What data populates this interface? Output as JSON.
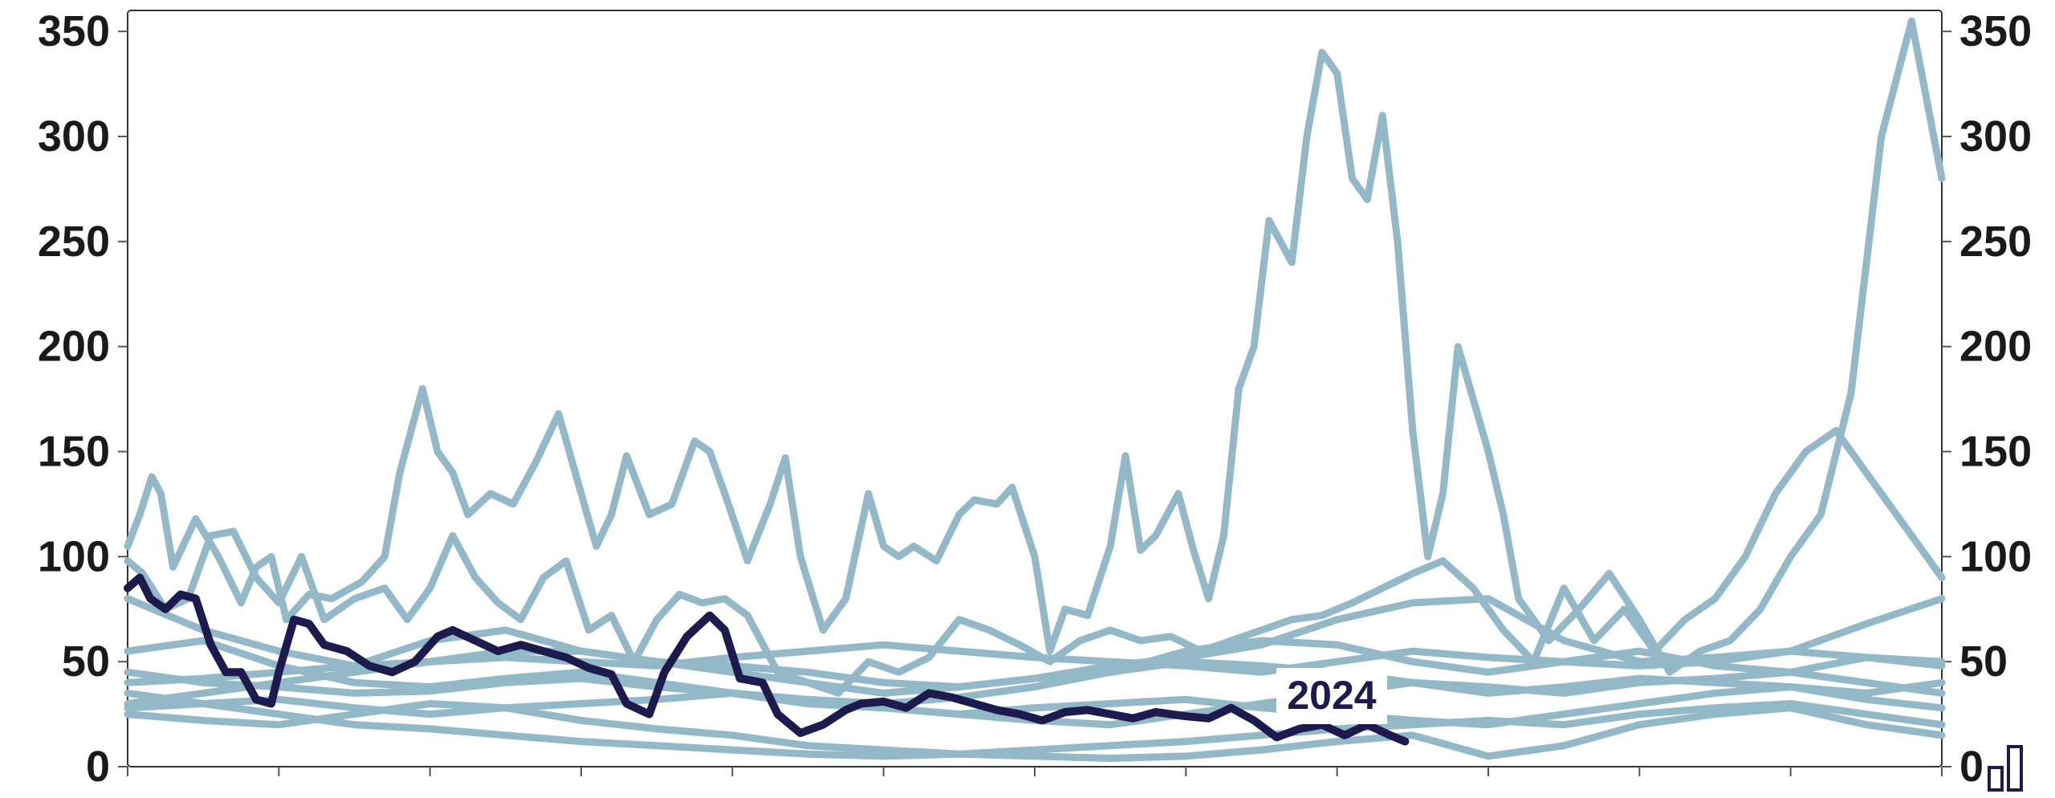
{
  "chart_data": {
    "type": "line",
    "title": "",
    "xlabel": "",
    "ylabel": "",
    "ylim": [
      0,
      360
    ],
    "yticks": [
      0,
      50,
      100,
      150,
      200,
      250,
      300,
      350
    ],
    "ytick_labels": [
      "0",
      "50",
      "100",
      "150",
      "200",
      "250",
      "300",
      "350"
    ],
    "xlim": [
      0,
      12
    ],
    "grid": false,
    "legend": "none",
    "colors": {
      "history": "#93b8c8",
      "highlight": "#1d1a4d",
      "axis": "#555555"
    },
    "highlight_label": "2024",
    "history_series": [
      {
        "x": [
          0,
          0.08,
          0.16,
          0.22,
          0.3,
          0.45,
          0.6,
          0.75,
          0.85,
          0.95,
          1.05,
          1.2,
          1.35,
          1.55,
          1.7,
          1.8,
          1.95,
          2.05,
          2.15,
          2.25,
          2.4,
          2.55,
          2.7,
          2.85,
          3.0,
          3.1,
          3.2,
          3.3,
          3.45,
          3.6,
          3.75,
          3.85,
          3.95,
          4.1,
          4.25,
          4.35,
          4.45,
          4.6,
          4.75,
          4.9,
          5.0,
          5.1,
          5.2,
          5.35,
          5.5,
          5.6,
          5.75,
          5.85,
          6.0,
          6.1,
          6.2,
          6.35,
          6.5,
          6.6,
          6.7,
          6.8,
          6.95,
          7.05,
          7.15,
          7.25,
          7.35,
          7.45,
          7.55,
          7.7,
          7.8,
          7.9,
          8.0,
          8.1,
          8.2,
          8.3,
          8.4,
          8.5,
          8.6,
          8.7,
          8.8,
          8.9,
          9.0,
          9.1,
          9.2,
          9.4,
          9.6,
          9.8,
          10.0,
          10.2,
          10.4,
          10.6,
          10.8,
          11.0,
          11.2,
          11.4,
          11.6,
          11.8,
          12.0
        ],
        "y": [
          105,
          120,
          138,
          130,
          95,
          118,
          100,
          78,
          95,
          100,
          70,
          82,
          80,
          88,
          100,
          140,
          180,
          150,
          140,
          120,
          130,
          125,
          145,
          168,
          130,
          105,
          120,
          148,
          120,
          125,
          155,
          150,
          130,
          98,
          125,
          147,
          100,
          65,
          80,
          130,
          105,
          100,
          105,
          98,
          120,
          127,
          125,
          133,
          100,
          55,
          75,
          72,
          105,
          148,
          103,
          110,
          130,
          103,
          80,
          110,
          180,
          200,
          260,
          240,
          300,
          340,
          330,
          280,
          270,
          310,
          250,
          160,
          100,
          130,
          200,
          175,
          150,
          120,
          80,
          60,
          75,
          92,
          70,
          45,
          55,
          60,
          75,
          100,
          120,
          178,
          300,
          355,
          280
        ]
      },
      {
        "x": [
          0,
          0.1,
          0.25,
          0.4,
          0.55,
          0.7,
          0.85,
          1.0,
          1.15,
          1.3,
          1.5,
          1.7,
          1.85,
          2.0,
          2.15,
          2.3,
          2.45,
          2.6,
          2.75,
          2.9,
          3.05,
          3.2,
          3.35,
          3.5,
          3.65,
          3.8,
          3.95,
          4.1,
          4.3,
          4.5,
          4.7,
          4.9,
          5.1,
          5.3,
          5.5,
          5.7,
          5.9,
          6.1,
          6.3,
          6.5,
          6.7,
          6.9,
          7.1,
          7.3,
          7.5,
          7.7,
          7.9,
          8.1,
          8.3,
          8.5,
          8.7,
          8.9,
          9.1,
          9.3,
          9.5,
          9.7,
          9.9,
          10.1,
          10.3,
          10.5,
          10.7,
          10.9,
          11.1,
          11.3,
          11.5,
          11.7,
          11.9,
          12.0
        ],
        "y": [
          98,
          92,
          75,
          80,
          110,
          112,
          90,
          78,
          100,
          70,
          80,
          85,
          70,
          85,
          110,
          90,
          78,
          70,
          90,
          98,
          65,
          72,
          50,
          70,
          82,
          78,
          80,
          72,
          45,
          40,
          35,
          50,
          45,
          52,
          70,
          65,
          58,
          50,
          60,
          65,
          60,
          62,
          55,
          60,
          65,
          70,
          72,
          78,
          85,
          92,
          98,
          85,
          65,
          50,
          85,
          60,
          75,
          55,
          70,
          80,
          100,
          130,
          150,
          160,
          140,
          120,
          100,
          90
        ]
      },
      {
        "x": [
          0,
          0.5,
          1.0,
          1.5,
          2.0,
          2.5,
          3.0,
          3.5,
          4.0,
          4.5,
          5.0,
          5.5,
          6.0,
          6.5,
          7.0,
          7.5,
          8.0,
          8.5,
          9.0,
          9.5,
          10.0,
          10.5,
          11.0,
          11.5,
          12.0
        ],
        "y": [
          80,
          65,
          55,
          48,
          60,
          65,
          55,
          50,
          48,
          45,
          40,
          38,
          42,
          48,
          52,
          58,
          70,
          78,
          80,
          60,
          50,
          52,
          55,
          68,
          80
        ]
      },
      {
        "x": [
          0,
          0.5,
          1.0,
          1.5,
          2.0,
          2.5,
          3.0,
          3.5,
          4.0,
          4.5,
          5.0,
          5.5,
          6.0,
          6.5,
          7.0,
          7.5,
          8.0,
          8.5,
          9.0,
          9.5,
          10.0,
          10.5,
          11.0,
          11.5,
          12.0
        ],
        "y": [
          55,
          60,
          48,
          40,
          38,
          42,
          45,
          40,
          35,
          32,
          30,
          33,
          38,
          45,
          55,
          60,
          58,
          50,
          45,
          50,
          55,
          48,
          45,
          52,
          50
        ]
      },
      {
        "x": [
          0,
          0.5,
          1.0,
          1.5,
          2.0,
          2.5,
          3.0,
          3.5,
          4.0,
          4.5,
          5.0,
          5.5,
          6.0,
          6.5,
          7.0,
          7.5,
          8.0,
          8.5,
          9.0,
          9.5,
          10.0,
          10.5,
          11.0,
          11.5,
          12.0
        ],
        "y": [
          45,
          40,
          38,
          35,
          36,
          40,
          42,
          38,
          35,
          30,
          28,
          25,
          22,
          20,
          25,
          30,
          35,
          40,
          38,
          35,
          40,
          42,
          45,
          40,
          35
        ]
      },
      {
        "x": [
          0,
          0.5,
          1.0,
          1.5,
          2.0,
          2.5,
          3.0,
          3.5,
          4.0,
          4.5,
          5.0,
          5.5,
          6.0,
          6.5,
          7.0,
          7.5,
          8.0,
          8.5,
          9.0,
          9.5,
          10.0,
          10.5,
          11.0,
          11.5,
          12.0
        ],
        "y": [
          35,
          30,
          25,
          20,
          18,
          15,
          12,
          10,
          8,
          6,
          5,
          6,
          8,
          10,
          12,
          15,
          18,
          20,
          22,
          20,
          25,
          28,
          30,
          25,
          20
        ]
      },
      {
        "x": [
          0,
          0.5,
          1.0,
          1.5,
          2.0,
          2.5,
          3.0,
          3.5,
          4.0,
          4.5,
          5.0,
          5.5,
          6.0,
          6.5,
          7.0,
          7.5,
          8.0,
          8.5,
          9.0,
          9.5,
          10.0,
          10.5,
          11.0,
          11.5,
          12.0
        ],
        "y": [
          25,
          22,
          20,
          25,
          30,
          28,
          22,
          18,
          15,
          10,
          8,
          6,
          5,
          4,
          5,
          8,
          12,
          15,
          5,
          10,
          20,
          25,
          28,
          20,
          15
        ]
      },
      {
        "x": [
          0,
          0.5,
          1.0,
          1.5,
          2.0,
          2.5,
          3.0,
          3.5,
          4.0,
          4.5,
          5.0,
          5.5,
          6.0,
          6.5,
          7.0,
          7.5,
          8.0,
          8.5,
          9.0,
          9.5,
          10.0,
          10.5,
          11.0,
          11.5,
          12.0
        ],
        "y": [
          30,
          35,
          40,
          45,
          50,
          55,
          55,
          50,
          45,
          40,
          35,
          38,
          42,
          45,
          50,
          48,
          45,
          40,
          35,
          38,
          42,
          40,
          38,
          35,
          40
        ]
      },
      {
        "x": [
          0,
          0.5,
          1.0,
          1.5,
          2.0,
          2.5,
          3.0,
          3.5,
          4.0,
          4.5,
          5.0,
          5.5,
          6.0,
          6.5,
          7.0,
          7.5,
          8.0,
          8.5,
          9.0,
          9.5,
          10.0,
          10.5,
          11.0,
          11.5,
          12.0
        ],
        "y": [
          40,
          42,
          45,
          48,
          50,
          52,
          50,
          48,
          52,
          55,
          58,
          55,
          52,
          50,
          48,
          45,
          50,
          55,
          52,
          50,
          48,
          50,
          55,
          52,
          48
        ]
      },
      {
        "x": [
          0,
          0.5,
          1.0,
          1.5,
          2.0,
          2.5,
          3.0,
          3.5,
          4.0,
          4.5,
          5.0,
          5.5,
          6.0,
          6.5,
          7.0,
          7.5,
          8.0,
          8.5,
          9.0,
          9.5,
          10.0,
          10.5,
          11.0,
          11.5,
          12.0
        ],
        "y": [
          28,
          30,
          32,
          28,
          25,
          28,
          30,
          32,
          35,
          30,
          28,
          25,
          28,
          30,
          32,
          28,
          25,
          22,
          20,
          25,
          30,
          35,
          38,
          32,
          28
        ]
      }
    ],
    "highlight_series": {
      "name": "2024",
      "x": [
        0,
        0.08,
        0.15,
        0.25,
        0.35,
        0.45,
        0.55,
        0.65,
        0.75,
        0.85,
        0.95,
        1.0,
        1.1,
        1.2,
        1.3,
        1.45,
        1.6,
        1.75,
        1.9,
        2.05,
        2.15,
        2.3,
        2.45,
        2.6,
        2.75,
        2.9,
        3.05,
        3.2,
        3.3,
        3.45,
        3.55,
        3.7,
        3.85,
        3.95,
        4.05,
        4.2,
        4.3,
        4.45,
        4.6,
        4.75,
        4.85,
        5.0,
        5.15,
        5.3,
        5.45,
        5.6,
        5.75,
        5.9,
        6.05,
        6.2,
        6.35,
        6.5,
        6.65,
        6.8,
        7.0,
        7.15,
        7.3,
        7.45,
        7.6,
        7.75,
        7.9,
        8.05,
        8.2,
        8.35,
        8.45
      ],
      "y": [
        85,
        90,
        80,
        75,
        82,
        80,
        58,
        45,
        45,
        32,
        30,
        45,
        70,
        68,
        58,
        55,
        48,
        45,
        50,
        62,
        65,
        60,
        55,
        58,
        55,
        52,
        47,
        44,
        30,
        25,
        45,
        62,
        72,
        65,
        42,
        40,
        25,
        16,
        20,
        27,
        30,
        31,
        28,
        35,
        33,
        30,
        27,
        25,
        22,
        26,
        27,
        25,
        23,
        26,
        24,
        23,
        28,
        22,
        14,
        18,
        20,
        15,
        20,
        15,
        12
      ]
    }
  }
}
